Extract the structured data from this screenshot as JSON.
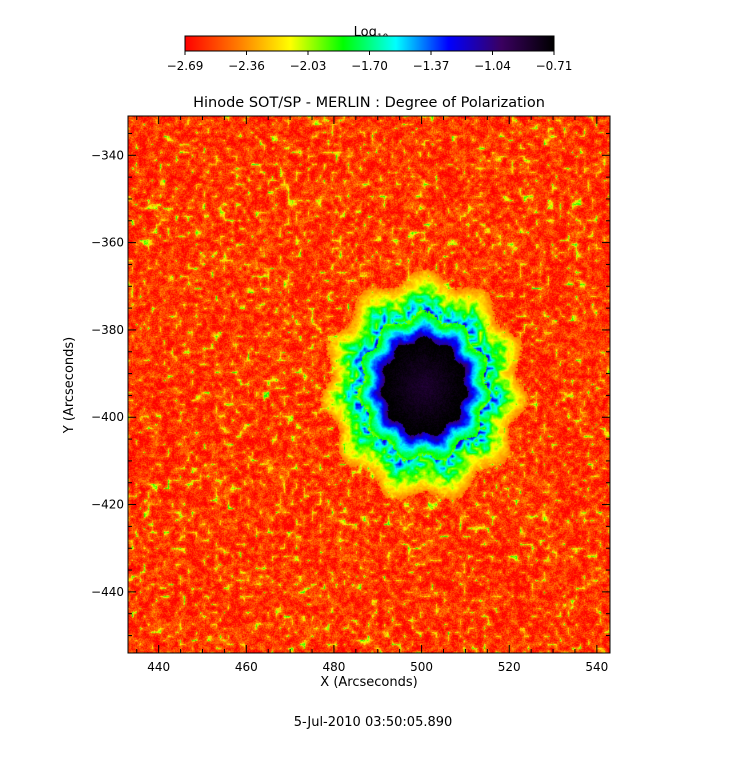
{
  "chart_data": {
    "type": "heatmap",
    "title": "Hinode SOT/SP - MERLIN : Degree of Polarization",
    "xlabel": "X (Arcseconds)",
    "ylabel": "Y (Arcseconds)",
    "xlim": [
      433,
      543
    ],
    "ylim": [
      -454,
      -331
    ],
    "x_ticks": [
      440,
      460,
      480,
      500,
      520,
      540
    ],
    "y_ticks": [
      -340,
      -360,
      -380,
      -400,
      -420,
      -440
    ],
    "x_tick_labels": [
      "440",
      "460",
      "480",
      "500",
      "520",
      "540"
    ],
    "y_tick_labels": [
      "−340",
      "−360",
      "−380",
      "−400",
      "−420",
      "−440"
    ],
    "colorbar": {
      "label_base": "Log",
      "label_sub": "10",
      "range": [
        -2.69,
        -0.71
      ],
      "ticks": [
        -2.69,
        -2.36,
        -2.03,
        -1.7,
        -1.37,
        -1.04,
        -0.71
      ],
      "tick_labels": [
        "−2.69",
        "−2.36",
        "−2.03",
        "−1.70",
        "−1.37",
        "−1.04",
        "−0.71"
      ],
      "colormap": [
        "#ff0000",
        "#ff7a00",
        "#ffff00",
        "#00ff00",
        "#00ffff",
        "#0000ff",
        "#3a0060",
        "#000000"
      ]
    },
    "features": [
      {
        "type": "sunspot_umbra",
        "center_x": 500.5,
        "center_y": -393,
        "radius_x": 9.5,
        "radius_y": 11,
        "value": -0.85
      },
      {
        "type": "sunspot_penumbra",
        "center_x": 500.5,
        "center_y": -393,
        "radius_x": 14.5,
        "radius_y": 16.5,
        "value": -1.3
      }
    ],
    "background_value": -2.55
  },
  "date_label": "5-Jul-2010 03:50:05.890"
}
